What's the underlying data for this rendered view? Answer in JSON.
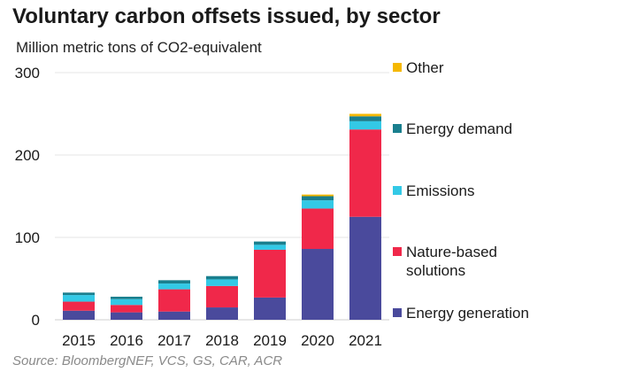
{
  "title": "Voluntary carbon offsets issued, by sector",
  "subtitle": "Million metric tons of CO2-equivalent",
  "source": "Source: BloombergNEF, VCS, GS, CAR, ACR",
  "chart_data": {
    "type": "bar",
    "stacked": true,
    "title": "Voluntary carbon offsets issued, by sector",
    "ylabel": "Million metric tons of CO2-equivalent",
    "xlabel": "",
    "ylim": [
      0,
      300
    ],
    "yticks": [
      0,
      100,
      200,
      300
    ],
    "grid": true,
    "legend_position": "right",
    "categories": [
      "2015",
      "2016",
      "2017",
      "2018",
      "2019",
      "2020",
      "2021"
    ],
    "series": [
      {
        "name": "Energy generation",
        "color": "#4a4a9c",
        "values": [
          11,
          9,
          10,
          15,
          27,
          86,
          125
        ]
      },
      {
        "name": "Nature-based solutions",
        "color": "#f0284a",
        "values": [
          11,
          9,
          27,
          26,
          58,
          49,
          106
        ]
      },
      {
        "name": "Emissions",
        "color": "#33c9e6",
        "values": [
          8,
          7,
          7,
          8,
          6,
          10,
          10
        ]
      },
      {
        "name": "Energy demand",
        "color": "#1a7f8e",
        "values": [
          3,
          3,
          4,
          4,
          4,
          5,
          6
        ]
      },
      {
        "name": "Other",
        "color": "#f5b800",
        "values": [
          0,
          0,
          0,
          0,
          0,
          2,
          3
        ]
      }
    ]
  },
  "legend": [
    {
      "label": "Other",
      "color": "#f5b800"
    },
    {
      "label": "Energy demand",
      "color": "#1a7f8e"
    },
    {
      "label": "Emissions",
      "color": "#33c9e6"
    },
    {
      "label": "Nature-based\nsolutions",
      "color": "#f0284a"
    },
    {
      "label": "Energy generation",
      "color": "#4a4a9c"
    }
  ]
}
